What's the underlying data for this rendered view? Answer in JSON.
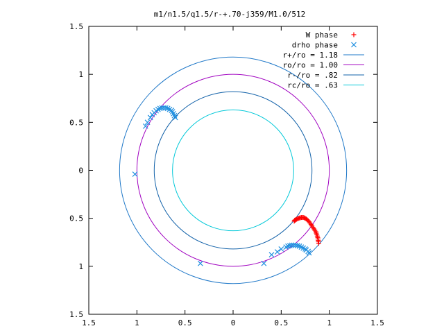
{
  "chart_data": {
    "type": "scatter",
    "title": "m1/n1.5/q1.5/r-+.70-j359/M1.0/512",
    "xlabel": "",
    "ylabel": "",
    "xlim": [
      -1.5,
      1.5
    ],
    "ylim": [
      -1.5,
      1.5
    ],
    "x_tick_values": [
      -1.5,
      -1,
      -0.5,
      0,
      0.5,
      1,
      1.5
    ],
    "x_tick_labels": [
      "1.5",
      "1",
      "0.5",
      "0",
      "0.5",
      "1",
      "1.5"
    ],
    "y_tick_values": [
      1.5,
      1,
      0.5,
      0,
      -0.5,
      -1,
      -1.5
    ],
    "y_tick_labels": [
      "1.5",
      "1",
      "0.5",
      "0",
      "0.5",
      "1",
      "1.5"
    ],
    "grid": false,
    "legend_position": "top-right",
    "circles": [
      {
        "name": "r+/ro = 1.18",
        "radius": 1.18,
        "color": "#1f78c8"
      },
      {
        "name": "ro/ro = 1.00",
        "radius": 1.0,
        "color": "#a000c0"
      },
      {
        "name": "r-/ro = .82",
        "radius": 0.82,
        "color": "#1060a8"
      },
      {
        "name": "rc/ro = .63",
        "radius": 0.63,
        "color": "#00c8d8"
      }
    ],
    "series": [
      {
        "name": "W phase",
        "marker": "plus",
        "color": "#ff0000",
        "points": [
          [
            0.64,
            -0.52
          ],
          [
            0.65,
            -0.515
          ],
          [
            0.66,
            -0.51
          ],
          [
            0.67,
            -0.505
          ],
          [
            0.68,
            -0.5
          ],
          [
            0.69,
            -0.497
          ],
          [
            0.7,
            -0.494
          ],
          [
            0.71,
            -0.492
          ],
          [
            0.72,
            -0.491
          ],
          [
            0.73,
            -0.492
          ],
          [
            0.74,
            -0.495
          ],
          [
            0.75,
            -0.5
          ],
          [
            0.76,
            -0.507
          ],
          [
            0.77,
            -0.515
          ],
          [
            0.78,
            -0.525
          ],
          [
            0.79,
            -0.537
          ],
          [
            0.8,
            -0.55
          ],
          [
            0.81,
            -0.565
          ],
          [
            0.82,
            -0.58
          ],
          [
            0.83,
            -0.595
          ],
          [
            0.84,
            -0.61
          ],
          [
            0.85,
            -0.625
          ],
          [
            0.86,
            -0.64
          ],
          [
            0.865,
            -0.655
          ],
          [
            0.87,
            -0.67
          ],
          [
            0.875,
            -0.685
          ],
          [
            0.88,
            -0.7
          ],
          [
            0.882,
            -0.715
          ],
          [
            0.885,
            -0.73
          ],
          [
            0.887,
            -0.745
          ],
          [
            0.89,
            -0.76
          ],
          [
            0.635,
            -0.53
          ],
          [
            0.645,
            -0.52
          ]
        ]
      },
      {
        "name": "drho phase",
        "marker": "cross",
        "color": "#1f8fe0",
        "points": [
          [
            -0.6,
            0.55
          ],
          [
            -0.61,
            0.57
          ],
          [
            -0.62,
            0.59
          ],
          [
            -0.63,
            0.61
          ],
          [
            -0.64,
            0.625
          ],
          [
            -0.66,
            0.635
          ],
          [
            -0.68,
            0.645
          ],
          [
            -0.7,
            0.65
          ],
          [
            -0.72,
            0.652
          ],
          [
            -0.74,
            0.65
          ],
          [
            -0.76,
            0.645
          ],
          [
            -0.78,
            0.635
          ],
          [
            -0.8,
            0.62
          ],
          [
            -0.82,
            0.6
          ],
          [
            -0.84,
            0.58
          ],
          [
            -0.86,
            0.55
          ],
          [
            -0.89,
            0.5
          ],
          [
            -0.91,
            0.46
          ],
          [
            -1.02,
            -0.04
          ],
          [
            0.55,
            -0.8
          ],
          [
            0.57,
            -0.79
          ],
          [
            0.59,
            -0.785
          ],
          [
            0.61,
            -0.78
          ],
          [
            0.63,
            -0.78
          ],
          [
            0.65,
            -0.78
          ],
          [
            0.67,
            -0.785
          ],
          [
            0.69,
            -0.79
          ],
          [
            0.71,
            -0.8
          ],
          [
            0.73,
            -0.81
          ],
          [
            0.75,
            -0.82
          ],
          [
            0.76,
            -0.83
          ],
          [
            0.78,
            -0.845
          ],
          [
            0.79,
            -0.86
          ],
          [
            0.5,
            -0.82
          ],
          [
            0.46,
            -0.85
          ],
          [
            0.4,
            -0.88
          ],
          [
            0.32,
            -0.97
          ],
          [
            -0.34,
            -0.97
          ]
        ]
      }
    ]
  }
}
